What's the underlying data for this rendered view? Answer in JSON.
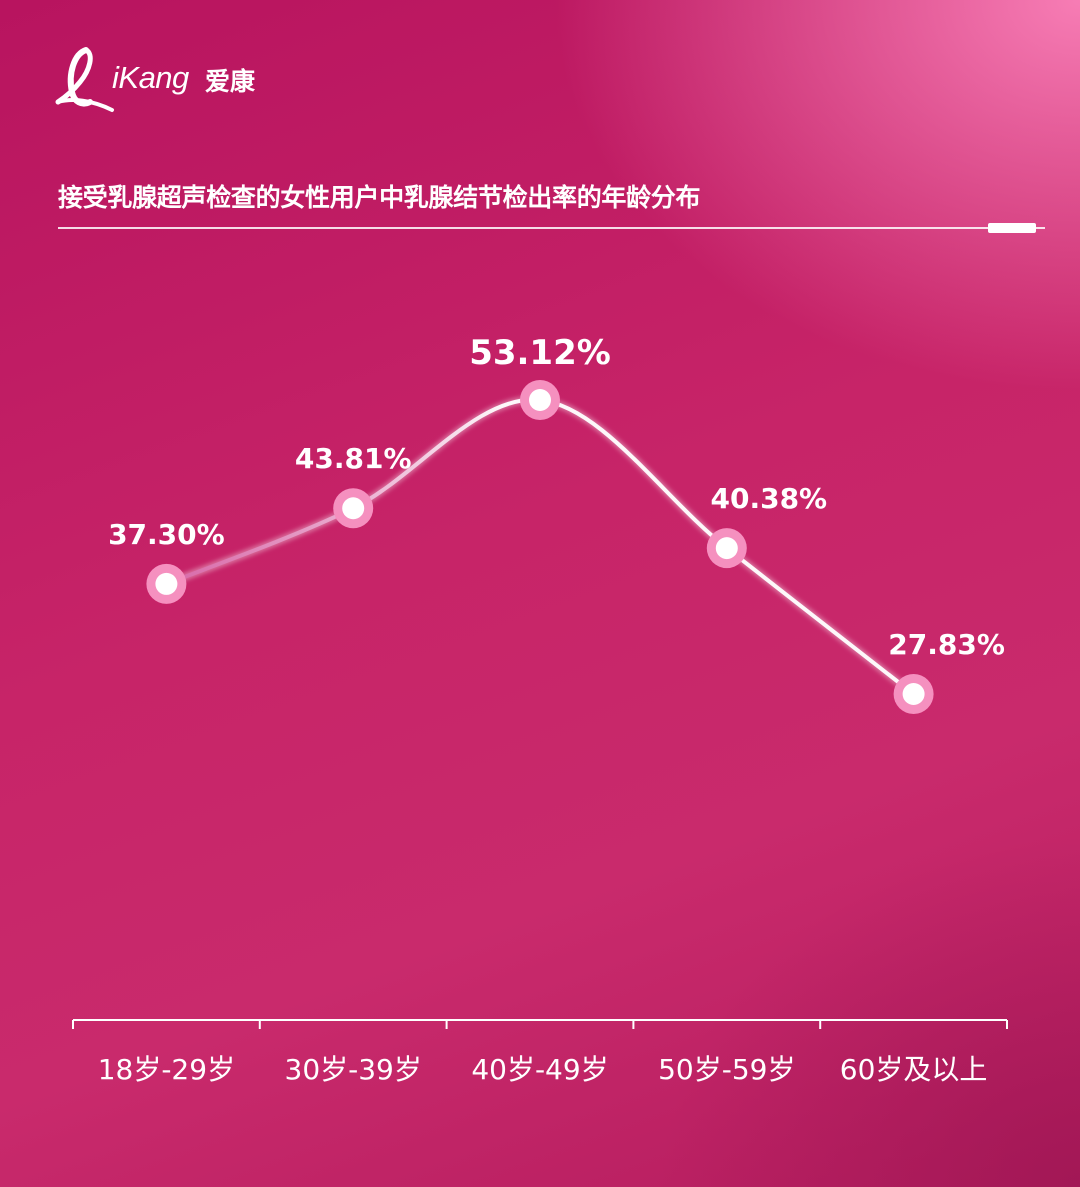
{
  "brand": {
    "name": "iKang",
    "name_cn": "爱康"
  },
  "colors": {
    "line": "#ffffff",
    "marker_ring": "#f590bf",
    "dash": "#ffffff",
    "axis": "#ffffff"
  },
  "chart_data": {
    "type": "line",
    "title": "接受乳腺超声检查的女性用户中乳腺结节检出率的年龄分布",
    "xlabel": "",
    "ylabel": "",
    "categories": [
      "18岁-29岁",
      "30岁-39岁",
      "40岁-49岁",
      "50岁-59岁",
      "60岁及以上"
    ],
    "series": [
      {
        "values": [
          37.3,
          43.81,
          53.12,
          40.38,
          27.83
        ],
        "labels": [
          "37.30%",
          "43.81%",
          "53.12%",
          "40.38%",
          "27.83%"
        ]
      }
    ],
    "grid": false,
    "legend": "none",
    "smooth": true,
    "y_axis_visible": false,
    "drop_lines": true
  }
}
